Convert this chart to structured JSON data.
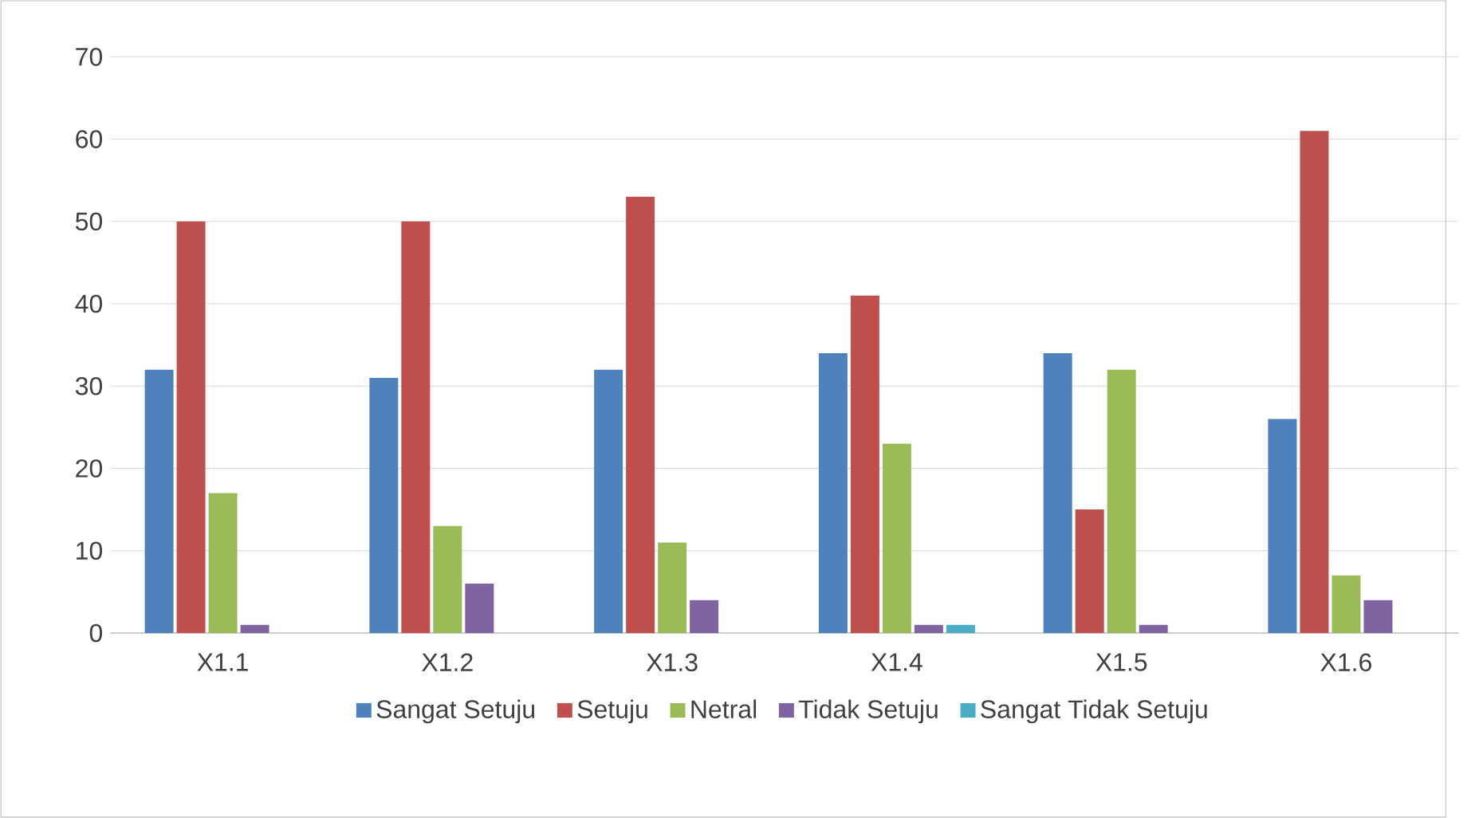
{
  "chart_data": {
    "type": "bar",
    "categories": [
      "X1.1",
      "X1.2",
      "X1.3",
      "X1.4",
      "X1.5",
      "X1.6"
    ],
    "series": [
      {
        "name": "Sangat Setuju",
        "color": "#4f81bd",
        "values": [
          32,
          31,
          32,
          34,
          34,
          26
        ]
      },
      {
        "name": "Setuju",
        "color": "#c0504d",
        "values": [
          50,
          50,
          53,
          41,
          15,
          61
        ]
      },
      {
        "name": "Netral",
        "color": "#9bbb59",
        "values": [
          17,
          13,
          11,
          23,
          32,
          7
        ]
      },
      {
        "name": "Tidak Setuju",
        "color": "#8064a2",
        "values": [
          1,
          6,
          4,
          1,
          1,
          4
        ]
      },
      {
        "name": "Sangat Tidak Setuju",
        "color": "#4bacc6",
        "values": [
          0,
          0,
          0,
          1,
          0,
          0
        ]
      }
    ],
    "ylim": [
      0,
      70
    ],
    "yticks": [
      0,
      10,
      20,
      30,
      40,
      50,
      60,
      70
    ],
    "grid": "y",
    "legend": "bottom"
  }
}
